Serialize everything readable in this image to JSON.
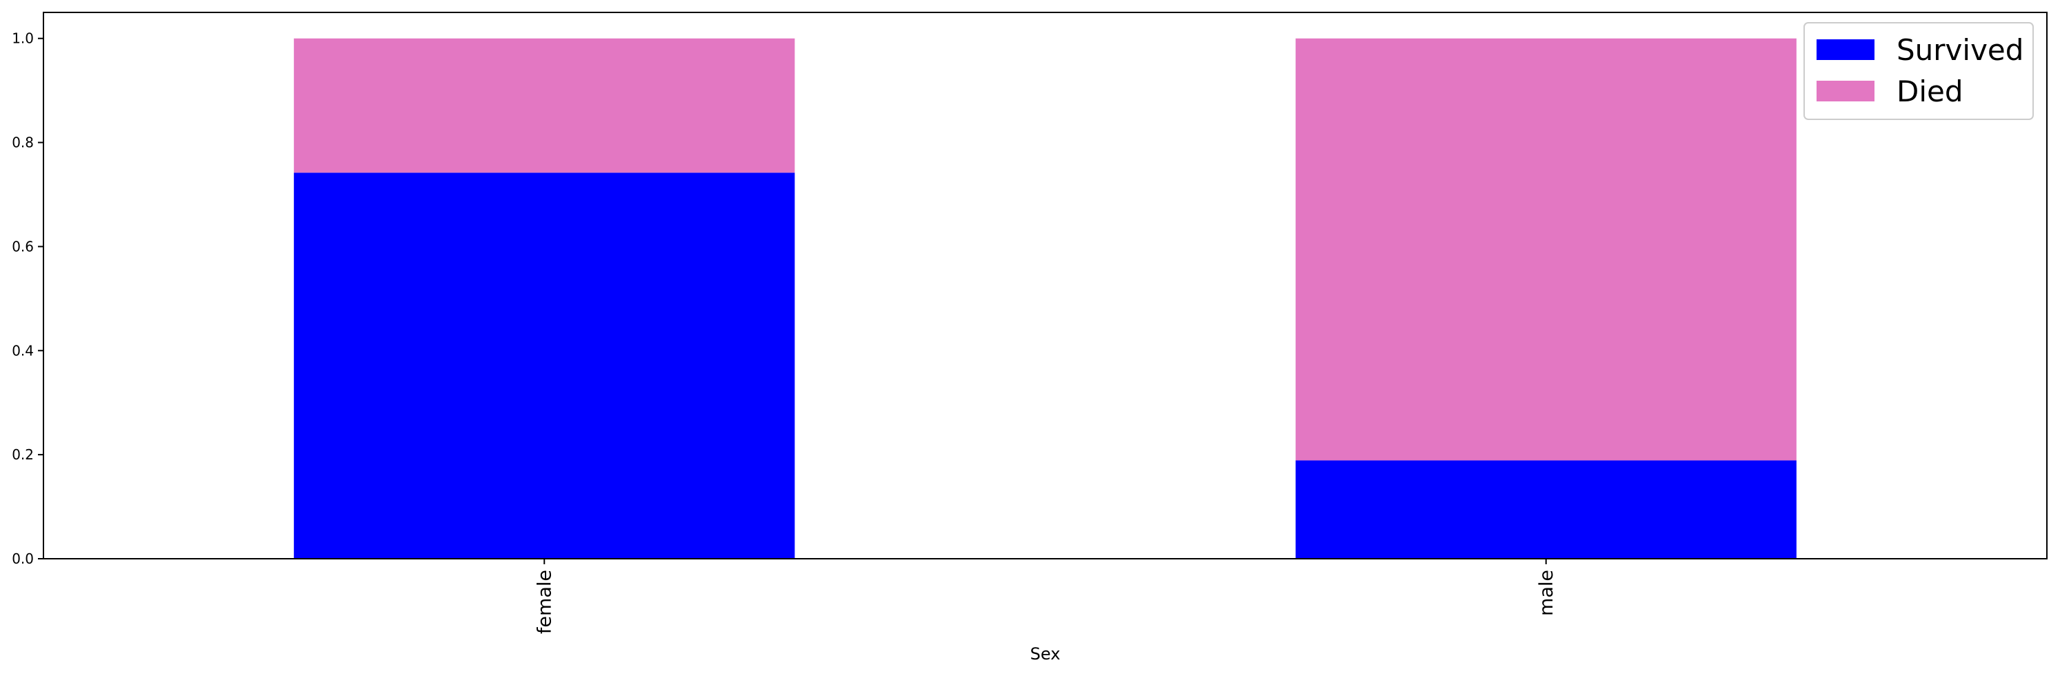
{
  "chart_data": {
    "type": "bar",
    "stacked": true,
    "title": "",
    "xlabel": "Sex",
    "ylabel": "",
    "categories": [
      "female",
      "male"
    ],
    "series": [
      {
        "name": "Survived",
        "color": "#0000ff",
        "values": [
          0.742,
          0.189
        ]
      },
      {
        "name": "Died",
        "color": "#e377c2",
        "values": [
          0.258,
          0.811
        ]
      }
    ],
    "ylim": [
      0.0,
      1.05
    ],
    "yticks": [
      0.0,
      0.2,
      0.4,
      0.6,
      0.8,
      1.0
    ],
    "ytick_labels": [
      "0.0",
      "0.2",
      "0.4",
      "0.6",
      "0.8",
      "1.0"
    ],
    "x_tick_label_rotation": "vertical",
    "grid": false,
    "legend_position": "top-right"
  }
}
